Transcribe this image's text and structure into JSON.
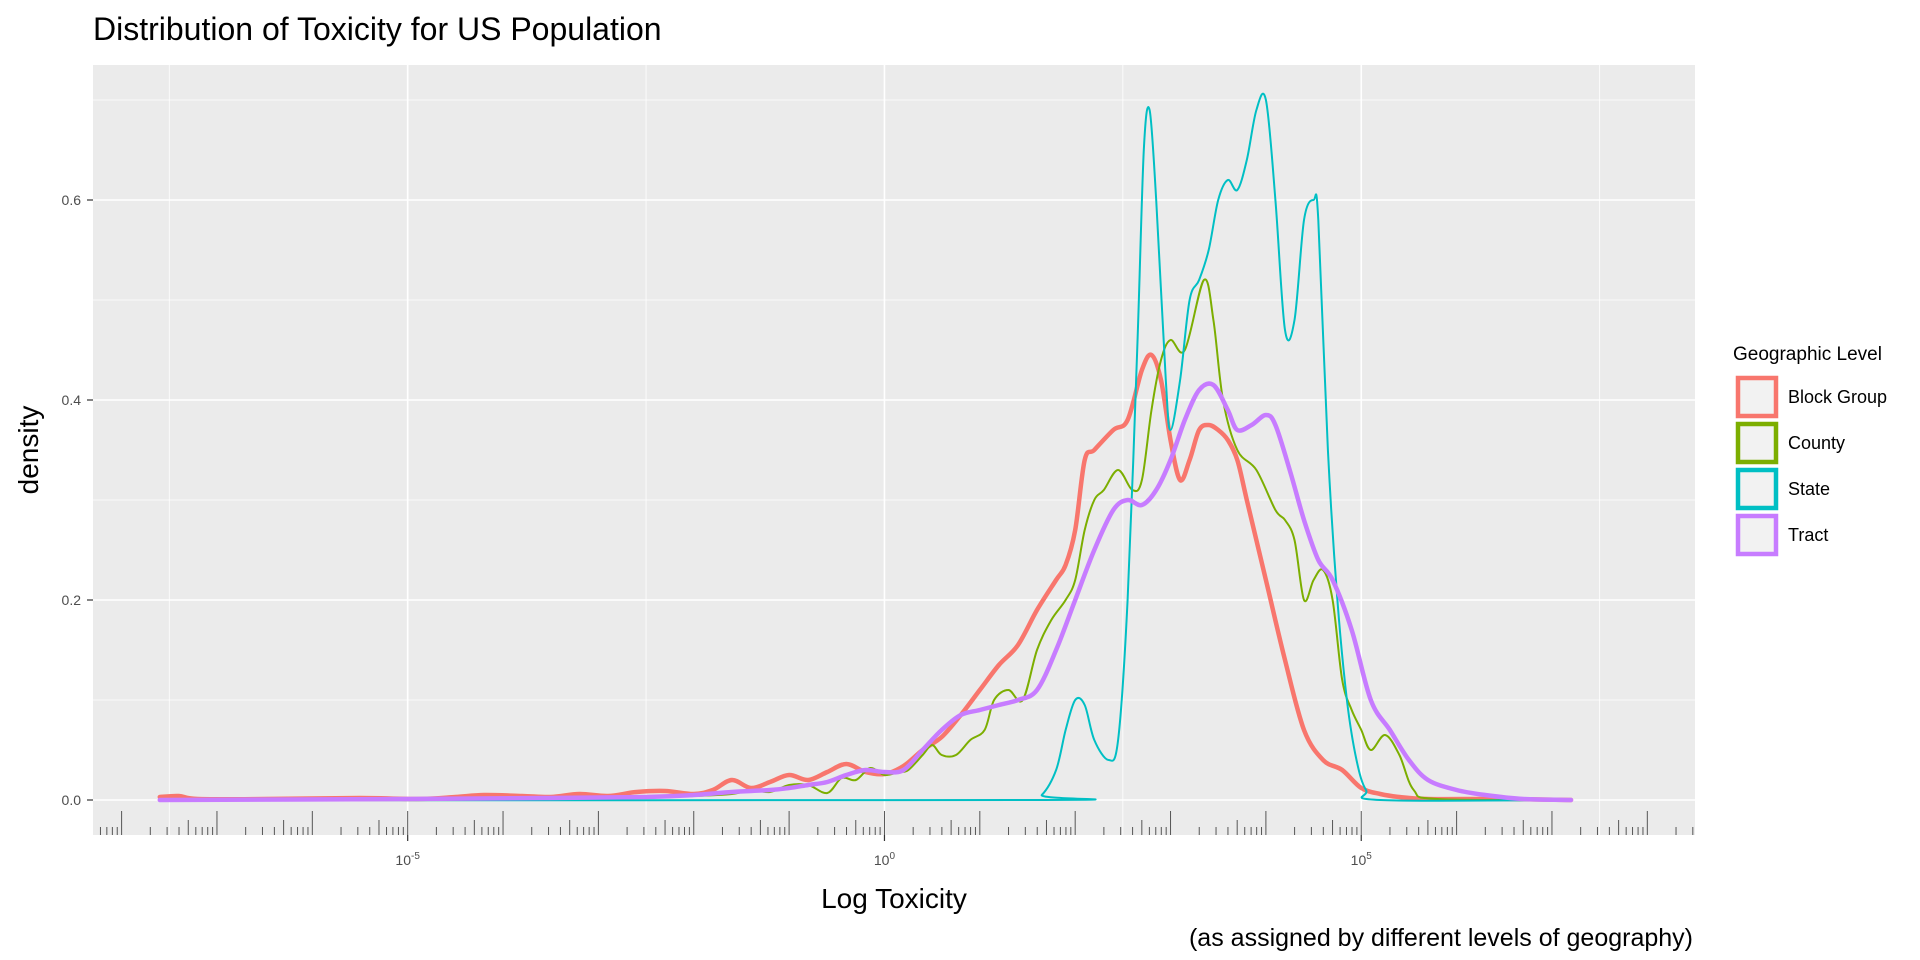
{
  "chart_data": {
    "type": "line",
    "title": "Distribution of Toxicity for US Population",
    "xlabel": "Log Toxicity",
    "ylabel": "density",
    "caption": "(as assigned by different levels of geography)",
    "x_scale": "log10",
    "xlim_log10": [
      -8.3,
      8.5
    ],
    "ylim": [
      -0.035,
      0.735
    ],
    "grid": true,
    "x_major_ticks": [
      {
        "log10": -5,
        "base": "10",
        "exp": "-5"
      },
      {
        "log10": 0,
        "base": "10",
        "exp": "0"
      },
      {
        "log10": 5,
        "base": "10",
        "exp": "5"
      }
    ],
    "y_ticks": [
      {
        "value": 0.0,
        "label": "0.0"
      },
      {
        "value": 0.2,
        "label": "0.2"
      },
      {
        "value": 0.4,
        "label": "0.4"
      },
      {
        "value": 0.6,
        "label": "0.6"
      }
    ],
    "legend": {
      "title": "Geographic Level",
      "position": "right"
    },
    "series": [
      {
        "name": "Block Group",
        "color": "#F8766D",
        "stroke": "thick",
        "points": [
          [
            -7.6,
            0.003
          ],
          [
            -7.4,
            0.004
          ],
          [
            -7.2,
            0.001
          ],
          [
            -6.5,
            0.001
          ],
          [
            -5.5,
            0.002
          ],
          [
            -4.9,
            0.001
          ],
          [
            -4.5,
            0.003
          ],
          [
            -4.2,
            0.005
          ],
          [
            -3.8,
            0.004
          ],
          [
            -3.5,
            0.003
          ],
          [
            -3.2,
            0.006
          ],
          [
            -2.9,
            0.004
          ],
          [
            -2.6,
            0.008
          ],
          [
            -2.3,
            0.009
          ],
          [
            -2.0,
            0.006
          ],
          [
            -1.8,
            0.01
          ],
          [
            -1.6,
            0.02
          ],
          [
            -1.4,
            0.012
          ],
          [
            -1.2,
            0.018
          ],
          [
            -1.0,
            0.025
          ],
          [
            -0.8,
            0.02
          ],
          [
            -0.6,
            0.028
          ],
          [
            -0.4,
            0.036
          ],
          [
            -0.2,
            0.028
          ],
          [
            0.0,
            0.026
          ],
          [
            0.2,
            0.034
          ],
          [
            0.4,
            0.05
          ],
          [
            0.6,
            0.063
          ],
          [
            0.8,
            0.085
          ],
          [
            1.0,
            0.11
          ],
          [
            1.2,
            0.135
          ],
          [
            1.4,
            0.155
          ],
          [
            1.6,
            0.19
          ],
          [
            1.8,
            0.22
          ],
          [
            1.9,
            0.235
          ],
          [
            2.0,
            0.27
          ],
          [
            2.1,
            0.34
          ],
          [
            2.2,
            0.35
          ],
          [
            2.4,
            0.37
          ],
          [
            2.55,
            0.38
          ],
          [
            2.7,
            0.43
          ],
          [
            2.8,
            0.445
          ],
          [
            2.9,
            0.42
          ],
          [
            3.0,
            0.36
          ],
          [
            3.1,
            0.32
          ],
          [
            3.2,
            0.34
          ],
          [
            3.3,
            0.37
          ],
          [
            3.4,
            0.375
          ],
          [
            3.5,
            0.37
          ],
          [
            3.6,
            0.36
          ],
          [
            3.7,
            0.34
          ],
          [
            3.8,
            0.3
          ],
          [
            4.0,
            0.22
          ],
          [
            4.2,
            0.14
          ],
          [
            4.4,
            0.07
          ],
          [
            4.6,
            0.04
          ],
          [
            4.8,
            0.03
          ],
          [
            5.0,
            0.012
          ],
          [
            5.2,
            0.006
          ],
          [
            5.4,
            0.003
          ],
          [
            5.7,
            0.001
          ],
          [
            6.5,
            0.001
          ],
          [
            7.2,
            0.0
          ]
        ]
      },
      {
        "name": "County",
        "color": "#7CAE00",
        "stroke": "thin",
        "points": [
          [
            -7.6,
            0.0
          ],
          [
            -4.0,
            0.0
          ],
          [
            -2.5,
            0.003
          ],
          [
            -2.0,
            0.004
          ],
          [
            -1.6,
            0.006
          ],
          [
            -1.4,
            0.01
          ],
          [
            -1.2,
            0.008
          ],
          [
            -1.0,
            0.015
          ],
          [
            -0.8,
            0.015
          ],
          [
            -0.6,
            0.007
          ],
          [
            -0.45,
            0.022
          ],
          [
            -0.3,
            0.02
          ],
          [
            -0.15,
            0.032
          ],
          [
            0.0,
            0.025
          ],
          [
            0.15,
            0.028
          ],
          [
            0.25,
            0.03
          ],
          [
            0.4,
            0.045
          ],
          [
            0.5,
            0.055
          ],
          [
            0.6,
            0.045
          ],
          [
            0.75,
            0.045
          ],
          [
            0.9,
            0.06
          ],
          [
            1.05,
            0.07
          ],
          [
            1.15,
            0.1
          ],
          [
            1.3,
            0.11
          ],
          [
            1.45,
            0.1
          ],
          [
            1.6,
            0.15
          ],
          [
            1.75,
            0.18
          ],
          [
            1.9,
            0.2
          ],
          [
            2.0,
            0.22
          ],
          [
            2.1,
            0.27
          ],
          [
            2.2,
            0.3
          ],
          [
            2.3,
            0.31
          ],
          [
            2.45,
            0.33
          ],
          [
            2.6,
            0.31
          ],
          [
            2.7,
            0.32
          ],
          [
            2.8,
            0.39
          ],
          [
            2.9,
            0.44
          ],
          [
            3.0,
            0.46
          ],
          [
            3.15,
            0.45
          ],
          [
            3.35,
            0.52
          ],
          [
            3.45,
            0.48
          ],
          [
            3.55,
            0.4
          ],
          [
            3.7,
            0.35
          ],
          [
            3.9,
            0.33
          ],
          [
            4.1,
            0.29
          ],
          [
            4.2,
            0.28
          ],
          [
            4.3,
            0.26
          ],
          [
            4.4,
            0.2
          ],
          [
            4.5,
            0.22
          ],
          [
            4.6,
            0.23
          ],
          [
            4.7,
            0.2
          ],
          [
            4.8,
            0.12
          ],
          [
            4.9,
            0.09
          ],
          [
            5.0,
            0.07
          ],
          [
            5.1,
            0.05
          ],
          [
            5.25,
            0.065
          ],
          [
            5.4,
            0.045
          ],
          [
            5.55,
            0.01
          ],
          [
            5.8,
            0.001
          ],
          [
            7.2,
            0.0
          ]
        ]
      },
      {
        "name": "State",
        "color": "#00BFC4",
        "stroke": "thin",
        "points": [
          [
            -7.6,
            0.0
          ],
          [
            1.5,
            0.0
          ],
          [
            1.65,
            0.005
          ],
          [
            1.8,
            0.03
          ],
          [
            1.9,
            0.07
          ],
          [
            2.0,
            0.1
          ],
          [
            2.1,
            0.095
          ],
          [
            2.2,
            0.06
          ],
          [
            2.35,
            0.04
          ],
          [
            2.45,
            0.06
          ],
          [
            2.55,
            0.2
          ],
          [
            2.65,
            0.45
          ],
          [
            2.72,
            0.65
          ],
          [
            2.78,
            0.69
          ],
          [
            2.85,
            0.6
          ],
          [
            2.95,
            0.42
          ],
          [
            3.0,
            0.37
          ],
          [
            3.1,
            0.42
          ],
          [
            3.2,
            0.5
          ],
          [
            3.3,
            0.52
          ],
          [
            3.4,
            0.55
          ],
          [
            3.5,
            0.6
          ],
          [
            3.6,
            0.62
          ],
          [
            3.7,
            0.61
          ],
          [
            3.8,
            0.64
          ],
          [
            3.9,
            0.69
          ],
          [
            4.0,
            0.7
          ],
          [
            4.1,
            0.6
          ],
          [
            4.2,
            0.47
          ],
          [
            4.3,
            0.48
          ],
          [
            4.4,
            0.58
          ],
          [
            4.5,
            0.6
          ],
          [
            4.55,
            0.58
          ],
          [
            4.65,
            0.35
          ],
          [
            4.75,
            0.2
          ],
          [
            4.85,
            0.1
          ],
          [
            4.95,
            0.04
          ],
          [
            5.05,
            0.01
          ],
          [
            5.2,
            0.0
          ],
          [
            7.2,
            0.0
          ]
        ]
      },
      {
        "name": "Tract",
        "color": "#C77CFF",
        "stroke": "thick",
        "points": [
          [
            -7.6,
            0.0
          ],
          [
            -5.0,
            0.001
          ],
          [
            -3.5,
            0.002
          ],
          [
            -2.5,
            0.003
          ],
          [
            -2.0,
            0.005
          ],
          [
            -1.6,
            0.008
          ],
          [
            -1.2,
            0.01
          ],
          [
            -1.0,
            0.012
          ],
          [
            -0.8,
            0.015
          ],
          [
            -0.6,
            0.018
          ],
          [
            -0.4,
            0.025
          ],
          [
            -0.2,
            0.03
          ],
          [
            0.0,
            0.028
          ],
          [
            0.2,
            0.03
          ],
          [
            0.4,
            0.05
          ],
          [
            0.6,
            0.07
          ],
          [
            0.8,
            0.085
          ],
          [
            1.0,
            0.09
          ],
          [
            1.2,
            0.095
          ],
          [
            1.4,
            0.1
          ],
          [
            1.6,
            0.11
          ],
          [
            1.8,
            0.15
          ],
          [
            2.0,
            0.2
          ],
          [
            2.2,
            0.25
          ],
          [
            2.4,
            0.29
          ],
          [
            2.55,
            0.3
          ],
          [
            2.7,
            0.295
          ],
          [
            2.85,
            0.31
          ],
          [
            3.0,
            0.34
          ],
          [
            3.15,
            0.38
          ],
          [
            3.3,
            0.41
          ],
          [
            3.45,
            0.415
          ],
          [
            3.6,
            0.39
          ],
          [
            3.7,
            0.37
          ],
          [
            3.85,
            0.375
          ],
          [
            4.0,
            0.385
          ],
          [
            4.1,
            0.375
          ],
          [
            4.25,
            0.33
          ],
          [
            4.4,
            0.28
          ],
          [
            4.55,
            0.24
          ],
          [
            4.7,
            0.22
          ],
          [
            4.9,
            0.17
          ],
          [
            5.1,
            0.1
          ],
          [
            5.3,
            0.07
          ],
          [
            5.5,
            0.04
          ],
          [
            5.7,
            0.02
          ],
          [
            6.0,
            0.01
          ],
          [
            6.3,
            0.005
          ],
          [
            6.7,
            0.001
          ],
          [
            7.2,
            0.0
          ]
        ]
      }
    ]
  }
}
